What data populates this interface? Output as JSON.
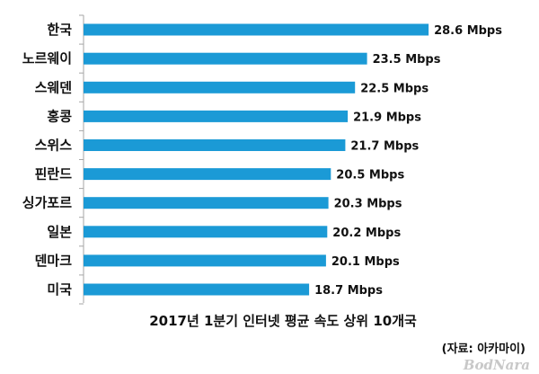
{
  "chart_data": {
    "type": "bar",
    "orientation": "horizontal",
    "categories": [
      "한국",
      "노르웨이",
      "스웨덴",
      "홍콩",
      "스위스",
      "핀란드",
      "싱가포르",
      "일본",
      "덴마크",
      "미국"
    ],
    "values": [
      28.6,
      23.5,
      22.5,
      21.9,
      21.7,
      20.5,
      20.3,
      20.2,
      20.1,
      18.7
    ],
    "data_labels": [
      "28.6 Mbps",
      "23.5 Mbps",
      "22.5 Mbps",
      "21.9 Mbps",
      "21.7 Mbps",
      "20.5 Mbps",
      "20.3 Mbps",
      "20.2 Mbps",
      "20.1 Mbps",
      "18.7 Mbps"
    ],
    "unit": "Mbps",
    "title": "2017년 1분기 인터넷 평균 속도 상위 10개국",
    "source": "(자료: 아카마이)",
    "xlim": [
      0,
      30
    ],
    "grid": false,
    "legend": "none",
    "bar_color": "#1b9ad6"
  },
  "watermark": "BodNara"
}
